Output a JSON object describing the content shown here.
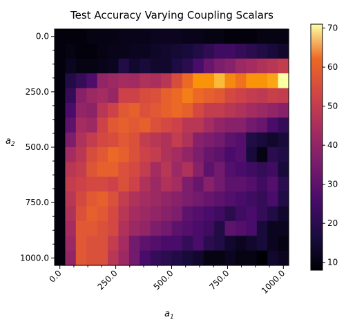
{
  "chart_data": {
    "type": "heatmap",
    "title": "Test Accuracy Varying Coupling Scalars",
    "xlabel": "a",
    "xlabel_sub": "1",
    "ylabel": "a",
    "ylabel_sub": "2",
    "x_range": [
      0,
      1000
    ],
    "y_range": [
      0,
      1000
    ],
    "x_ticks": [
      0,
      250,
      500,
      750,
      1000
    ],
    "x_tick_labels": [
      "0.0",
      "250.0",
      "500.0",
      "750.0",
      "1000.0"
    ],
    "y_ticks": [
      0,
      250,
      500,
      750,
      1000
    ],
    "y_tick_labels": [
      "0.0",
      "250.0",
      "500.0",
      "750.0",
      "1000.0"
    ],
    "colormap": "inferno",
    "colorbar_range": [
      8,
      71
    ],
    "colorbar_ticks": [
      10,
      20,
      30,
      40,
      50,
      60,
      70
    ],
    "colorbar_tick_labels": [
      "10",
      "20",
      "30",
      "40",
      "50",
      "60",
      "70"
    ],
    "grid": false,
    "values": [
      [
        9,
        9,
        9,
        10,
        10,
        10,
        11,
        11,
        11,
        12,
        12,
        12,
        11,
        11,
        10,
        10,
        9,
        9,
        9,
        10,
        10,
        10
      ],
      [
        9,
        10,
        9,
        9,
        10,
        11,
        11,
        12,
        12,
        13,
        14,
        15,
        16,
        18,
        21,
        24,
        24,
        22,
        20,
        18,
        16,
        14
      ],
      [
        9,
        12,
        10,
        10,
        11,
        12,
        18,
        14,
        16,
        14,
        14,
        17,
        20,
        26,
        32,
        36,
        38,
        42,
        44,
        46,
        48,
        50
      ],
      [
        9,
        18,
        22,
        27,
        40,
        42,
        44,
        43,
        46,
        45,
        48,
        55,
        62,
        66,
        66,
        68,
        65,
        63,
        66,
        66,
        67,
        71
      ],
      [
        9,
        22,
        38,
        42,
        44,
        41,
        52,
        52,
        55,
        56,
        60,
        62,
        64,
        62,
        60,
        58,
        54,
        52,
        50,
        49,
        51,
        50
      ],
      [
        9,
        26,
        40,
        39,
        48,
        52,
        58,
        60,
        56,
        58,
        60,
        62,
        60,
        54,
        50,
        50,
        48,
        46,
        44,
        42,
        40,
        38
      ],
      [
        9,
        30,
        44,
        42,
        52,
        58,
        60,
        58,
        60,
        56,
        54,
        52,
        48,
        48,
        44,
        40,
        38,
        38,
        34,
        32,
        26,
        22
      ],
      [
        9,
        36,
        46,
        50,
        54,
        55,
        58,
        56,
        50,
        48,
        46,
        50,
        46,
        38,
        36,
        34,
        30,
        28,
        18,
        16,
        14,
        16
      ],
      [
        9,
        44,
        48,
        55,
        58,
        62,
        60,
        56,
        52,
        50,
        46,
        44,
        40,
        36,
        32,
        30,
        26,
        28,
        16,
        10,
        20,
        18
      ],
      [
        9,
        48,
        50,
        57,
        60,
        60,
        56,
        54,
        50,
        44,
        48,
        42,
        46,
        38,
        30,
        34,
        28,
        26,
        24,
        22,
        24,
        16
      ],
      [
        9,
        50,
        52,
        54,
        54,
        52,
        56,
        52,
        46,
        42,
        46,
        44,
        36,
        32,
        38,
        34,
        30,
        30,
        28,
        24,
        28,
        20
      ],
      [
        9,
        48,
        54,
        58,
        60,
        56,
        50,
        46,
        44,
        42,
        40,
        38,
        36,
        34,
        32,
        30,
        28,
        26,
        24,
        22,
        26,
        18
      ],
      [
        9,
        46,
        56,
        60,
        58,
        54,
        48,
        44,
        42,
        40,
        38,
        36,
        30,
        28,
        26,
        24,
        20,
        24,
        26,
        22,
        18,
        14
      ],
      [
        9,
        44,
        58,
        58,
        56,
        54,
        46,
        42,
        40,
        36,
        34,
        30,
        28,
        26,
        24,
        18,
        30,
        28,
        26,
        16,
        12,
        12
      ],
      [
        9,
        42,
        58,
        56,
        56,
        50,
        44,
        34,
        30,
        28,
        26,
        26,
        22,
        26,
        20,
        18,
        14,
        12,
        14,
        16,
        12,
        10
      ],
      [
        9,
        40,
        58,
        56,
        56,
        48,
        42,
        34,
        26,
        22,
        20,
        18,
        16,
        14,
        10,
        10,
        12,
        10,
        10,
        8,
        14,
        12
      ]
    ]
  }
}
